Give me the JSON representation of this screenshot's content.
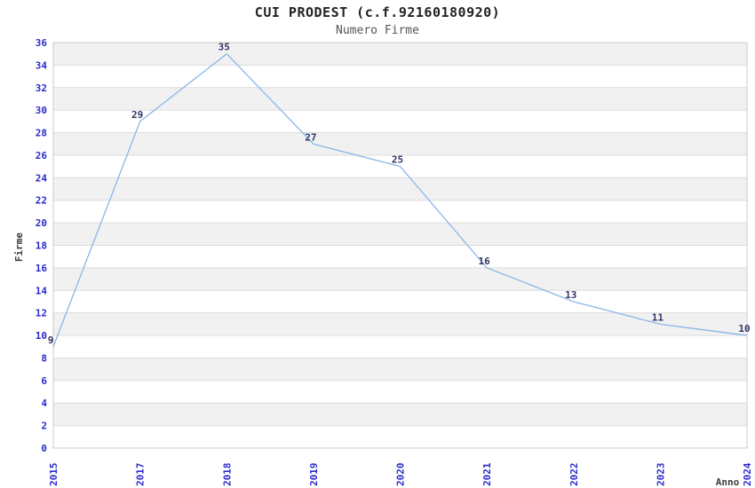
{
  "chart_data": {
    "type": "line",
    "title": "CUI PRODEST (c.f.92160180920)",
    "subtitle": "Numero Firme",
    "xlabel": "Anno",
    "ylabel": "Firme",
    "categories": [
      "2015",
      "2017",
      "2018",
      "2019",
      "2020",
      "2021",
      "2022",
      "2023",
      "2024"
    ],
    "series": [
      {
        "name": "Numero Firme",
        "values": [
          9,
          29,
          35,
          27,
          25,
          16,
          13,
          11,
          10
        ]
      }
    ],
    "data_labels": [
      "9",
      "29",
      "35",
      "27",
      "25",
      "16",
      "13",
      "11",
      "10"
    ],
    "ylim": [
      0,
      36
    ],
    "ytick_step": 2,
    "yticks": [
      0,
      2,
      4,
      6,
      8,
      10,
      12,
      14,
      16,
      18,
      20,
      22,
      24,
      26,
      28,
      30,
      32,
      34,
      36
    ],
    "legend": "none",
    "grid": "horizontal-stripes",
    "colors": {
      "line": "#8ab6e8",
      "tick_label": "#2a2ace",
      "data_label": "#333366",
      "axis_title": "#3c3c3c",
      "title": "#222222",
      "subtitle": "#555555",
      "stripe": "#f1f1f1",
      "gridline": "#dcdcdc",
      "plot_border": "#cccccc",
      "background": "#ffffff"
    }
  }
}
